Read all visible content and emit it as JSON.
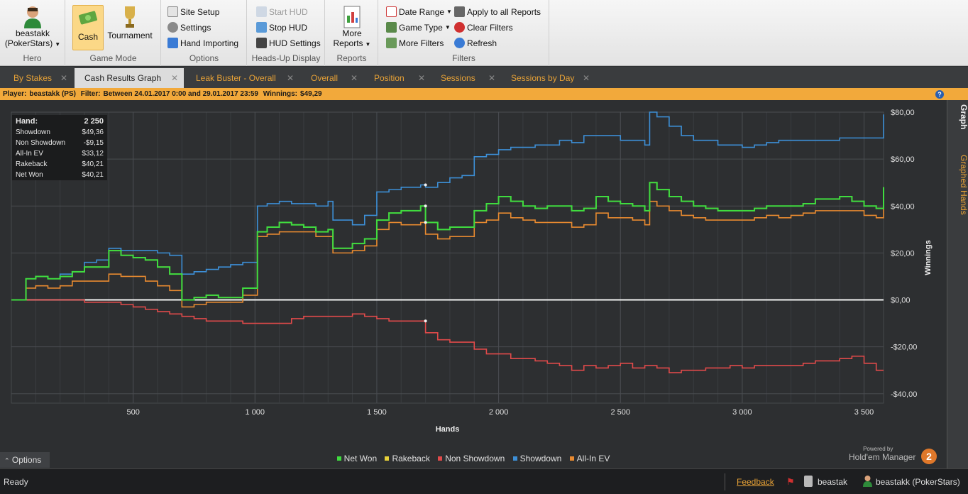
{
  "ribbon": {
    "hero": {
      "name": "beastakk",
      "site": "(PokerStars)",
      "group": "Hero"
    },
    "gamemode": {
      "cash": "Cash",
      "tournament": "Tournament",
      "group": "Game Mode"
    },
    "options": {
      "site_setup": "Site Setup",
      "settings": "Settings",
      "hand_importing": "Hand Importing",
      "group": "Options"
    },
    "hud": {
      "start": "Start HUD",
      "stop": "Stop HUD",
      "settings": "HUD Settings",
      "group": "Heads-Up Display"
    },
    "reports": {
      "more": "More",
      "reports": "Reports",
      "group": "Reports"
    },
    "filters": {
      "date_range": "Date Range",
      "game_type": "Game Type",
      "more_filters": "More Filters",
      "apply_all": "Apply to all Reports",
      "clear": "Clear Filters",
      "refresh": "Refresh",
      "group": "Filters"
    }
  },
  "tabs": [
    "By Stakes",
    "Cash Results Graph",
    "Leak Buster - Overall",
    "Overall",
    "Position",
    "Sessions",
    "Sessions by Day"
  ],
  "filterbar": {
    "player_label": "Player:",
    "player": "beastakk (PS)",
    "filter_label": "Filter:",
    "filter": "Between 24.01.2017 0:00 and 29.01.2017 23:59",
    "winnings_label": "Winnings:",
    "winnings": "$49,29"
  },
  "stats": {
    "hand_label": "Hand:",
    "hand": "2 250",
    "rows": [
      {
        "k": "Showdown",
        "v": "$49,36"
      },
      {
        "k": "Non Showdown",
        "v": "-$9,15"
      },
      {
        "k": "All-In EV",
        "v": "$33,12"
      },
      {
        "k": "Rakeback",
        "v": "$40,21"
      },
      {
        "k": "Net Won",
        "v": "$40,21"
      }
    ]
  },
  "side_tabs": {
    "graph": "Graph",
    "graphed_hands": "Graphed Hands"
  },
  "options_label": "Options",
  "legend": [
    {
      "name": "Net Won",
      "color": "#3fdc3f"
    },
    {
      "name": "Rakeback",
      "color": "#e8d23a"
    },
    {
      "name": "Non Showdown",
      "color": "#e04a4a"
    },
    {
      "name": "Showdown",
      "color": "#3d8fd6"
    },
    {
      "name": "All-In EV",
      "color": "#e88a30"
    }
  ],
  "powered": {
    "small": "Powered by",
    "brand": "Hold'em Manager",
    "num": "2"
  },
  "status": {
    "ready": "Ready",
    "feedback": "Feedback",
    "user1": "beastak",
    "user2": "beastakk (PokerStars)"
  },
  "chart_data": {
    "type": "line",
    "xlabel": "Hands",
    "ylabel": "Winnings",
    "xlim": [
      0,
      3580
    ],
    "ylim": [
      -44,
      80
    ],
    "xticks": [
      500,
      1000,
      1500,
      2000,
      2500,
      3000,
      3500
    ],
    "xtick_labels": [
      "500",
      "1 000",
      "1 500",
      "2 000",
      "2 500",
      "3 000",
      "3 500"
    ],
    "yticks": [
      80,
      60,
      40,
      20,
      0,
      -20,
      -40
    ],
    "ytick_labels": [
      "$80,00",
      "$60,00",
      "$40,00",
      "$20,00",
      "$0,00",
      "-$20,00",
      "-$40,00"
    ],
    "x": [
      0,
      60,
      100,
      150,
      200,
      250,
      300,
      350,
      400,
      450,
      500,
      550,
      600,
      650,
      700,
      750,
      800,
      850,
      900,
      950,
      990,
      1010,
      1050,
      1100,
      1150,
      1200,
      1250,
      1300,
      1320,
      1400,
      1450,
      1500,
      1550,
      1600,
      1680,
      1700,
      1750,
      1800,
      1850,
      1900,
      1950,
      2000,
      2050,
      2100,
      2150,
      2200,
      2250,
      2300,
      2350,
      2400,
      2450,
      2500,
      2550,
      2600,
      2620,
      2650,
      2700,
      2750,
      2800,
      2850,
      2900,
      2950,
      3000,
      3050,
      3100,
      3150,
      3200,
      3250,
      3300,
      3350,
      3400,
      3450,
      3500,
      3550,
      3580
    ],
    "series": [
      {
        "name": "Net Won",
        "color": "#3fdc3f",
        "values": [
          0,
          9,
          10,
          9,
          10,
          12,
          14,
          14,
          21,
          19,
          18,
          17,
          14,
          11,
          0,
          1,
          2,
          1,
          1,
          5,
          5,
          29,
          31,
          33,
          32,
          31,
          29,
          30,
          22,
          24,
          26,
          34,
          37,
          38,
          40,
          33,
          30,
          31,
          31,
          38,
          41,
          44,
          42,
          40,
          39,
          40,
          40,
          38,
          39,
          44,
          42,
          41,
          40,
          38,
          50,
          47,
          44,
          42,
          40,
          39,
          38,
          38,
          38,
          39,
          40,
          40,
          40,
          41,
          43,
          43,
          44,
          42,
          40,
          39,
          48
        ]
      },
      {
        "name": "Non Showdown",
        "color": "#e04a4a",
        "values": [
          0,
          0,
          0,
          0,
          0,
          0,
          -1,
          -1,
          -1,
          -2,
          -3,
          -4,
          -5,
          -6,
          -7,
          -8,
          -9,
          -9,
          -9,
          -10,
          -10,
          -10,
          -10,
          -10,
          -8,
          -7,
          -7,
          -7,
          -7,
          -6,
          -7,
          -8,
          -9,
          -9,
          -9,
          -14,
          -17,
          -18,
          -18,
          -21,
          -23,
          -23,
          -25,
          -25,
          -26,
          -27,
          -28,
          -30,
          -28,
          -29,
          -28,
          -27,
          -29,
          -28,
          -28,
          -29,
          -31,
          -30,
          -30,
          -29,
          -29,
          -28,
          -29,
          -28,
          -28,
          -28,
          -28,
          -27,
          -26,
          -26,
          -25,
          -24,
          -27,
          -30,
          -30
        ]
      },
      {
        "name": "Showdown",
        "color": "#3d8fd6",
        "values": [
          0,
          9,
          10,
          9,
          11,
          12,
          16,
          17,
          22,
          21,
          21,
          21,
          20,
          19,
          11,
          12,
          13,
          14,
          15,
          16,
          16,
          40,
          41,
          42,
          41,
          41,
          40,
          42,
          34,
          32,
          36,
          46,
          47,
          48,
          49,
          48,
          50,
          52,
          53,
          61,
          62,
          64,
          65,
          65,
          66,
          66,
          68,
          67,
          70,
          70,
          70,
          68,
          68,
          66,
          80,
          78,
          74,
          70,
          68,
          68,
          66,
          66,
          65,
          66,
          67,
          68,
          68,
          68,
          68,
          68,
          69,
          69,
          69,
          69,
          79
        ]
      },
      {
        "name": "Rakeback",
        "color": "#e8d23a",
        "values": [
          0,
          9,
          10,
          9,
          10,
          12,
          14,
          14,
          21,
          19,
          18,
          17,
          14,
          11,
          0,
          1,
          2,
          1,
          1,
          5,
          5,
          29,
          31,
          33,
          32,
          31,
          29,
          30,
          22,
          24,
          26,
          34,
          37,
          38,
          40,
          33,
          30,
          31,
          31,
          38,
          41,
          44,
          42,
          40,
          39,
          40,
          40,
          38,
          39,
          44,
          42,
          41,
          40,
          38,
          50,
          47,
          44,
          42,
          40,
          39,
          38,
          38,
          38,
          39,
          40,
          40,
          40,
          41,
          43,
          43,
          44,
          42,
          40,
          39,
          48
        ]
      },
      {
        "name": "All-In EV",
        "color": "#e88a30",
        "values": [
          0,
          5,
          6,
          5,
          6,
          8,
          8,
          8,
          11,
          10,
          10,
          8,
          6,
          4,
          -3,
          -2,
          -1,
          -1,
          -1,
          2,
          2,
          27,
          28,
          29,
          29,
          29,
          27,
          27,
          20,
          21,
          23,
          30,
          33,
          32,
          33,
          28,
          26,
          27,
          27,
          33,
          34,
          37,
          35,
          34,
          33,
          33,
          33,
          31,
          32,
          37,
          35,
          35,
          34,
          32,
          42,
          40,
          38,
          36,
          35,
          34,
          34,
          34,
          34,
          35,
          36,
          35,
          36,
          37,
          38,
          38,
          38,
          38,
          36,
          35,
          45
        ]
      }
    ]
  }
}
